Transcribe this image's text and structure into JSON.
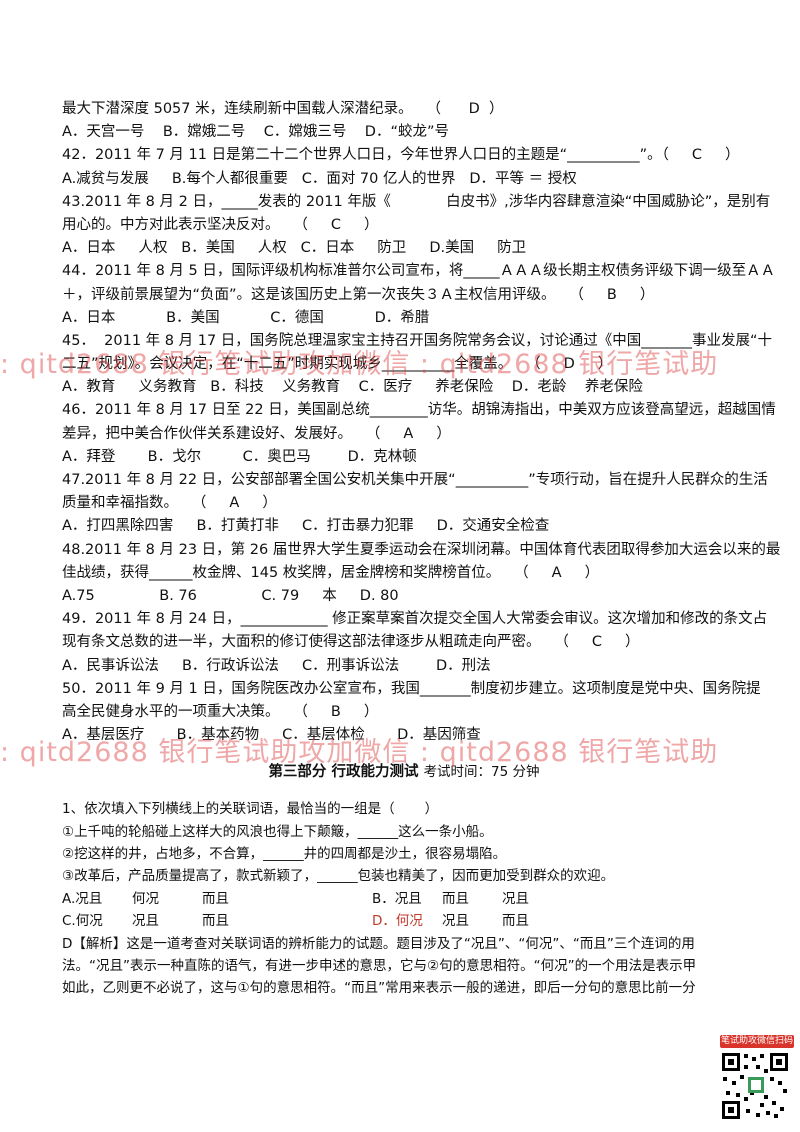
{
  "lines_top": [
    "最大下潜深度 5057 米，连续刷新中国载人深潜纪录。   （      D  ）",
    "A．天宫一号    B．嫦娥二号    C．嫦娥三号    D．“蛟龙”号",
    "42．2011 年 7 月 11 日是第二十二个世界人口日，今年世界人口日的主题是“__________”。（     C     ）",
    "A.减贫与发展     B.每个人都很重要   C．面对 70 亿人的世界   D．平等 ＝ 授权",
    "43.2011 年 8 月 2 日，_____发表的 2011 年版《            白皮书》,涉华内容肆意渲染“中国威胁论”，是别有",
    "用心的。中方对此表示坚决反对。   （     C     ）",
    "A．日本     人权   B．美国     人权   C．日本     防卫     D.美国     防卫",
    "44．2011 年 8 月 5 日，国际评级机构标准普尔公司宣布，将_____ＡＡＡ级长期主权债务评级下调一级至ＡＡ",
    "＋，评级前景展望为“负面”。这是该国历史上第一次丧失３Ａ主权信用评级。   （     B     ）",
    "A．日本           B．美国           C．德国           D．希腊",
    "45．  2011 年 8 月 17 日，国务院总理温家宝主持召开国务院常务会议，讨论通过《中国_______事业发展“十",
    "二五”规划》。会议决定，在“十二五”时期实现城乡__________全覆盖。   （     D     ）",
    "A．教育     义务教育   B．科技    义务教育    C．医疗     养老保险    D．老龄    养老保险",
    "46．2011 年 8 月 17 日至 22 日，美国副总统________访华。胡锦涛指出，中美双方应该登高望远，超越国情",
    "差异，把中美合作伙伴关系建设好、发展好。   （     A     ）",
    "A．拜登       B．戈尔         C．奥巴马        D．克林顿",
    "47.2011 年 8 月 22 日，公安部部署全国公安机关集中开展“__________”专项行动，旨在提升人民群众的生活",
    "质量和幸福指数。   （     A     ）",
    "A．打四黑除四害     B．打黄打非     C．打击暴力犯罪     D．交通安全检查",
    "48.2011 年 8 月 23 日，第 26 届世界大学生夏季运动会在深圳闭幕。中国体育代表团取得参加大运会以来的最",
    "佳战绩，获得______枚金牌、145 枚奖牌，居金牌榜和奖牌榜首位。   （     A     ）",
    "A.75              B. 76              C. 79     本     D. 80",
    "49．2011 年 8 月 24 日，____________ 修正案草案首次提交全国人大常委会审议。这次增加和修改的条文占",
    "现有条文总数的进一半，大面积的修订使得这部法律逐步从粗疏走向严密。   （     C     ）",
    "A．民事诉讼法     B．行政诉讼法     C．刑事诉讼法        D．刑法",
    "50．2011 年 9 月 1 日，国务院医改办公室宣布，我国_______制度初步建立。这项制度是党中央、国务院提",
    "高全民健身水平的一项重大决策。   （     B     ）",
    "A．基层医疗       B．基本药物     C．基层体检       D．基因筛查"
  ],
  "section3": {
    "title": "第三部分   行政能力测试",
    "subtitle": "考试时间：75 分钟"
  },
  "part3_lines": [
    "1、依次填入下列横线上的关联词语，最恰当的一组是（       ）",
    "①上千吨的轮船碰上这样大的风浪也得上下颠簸，______这么一条小船。",
    "②挖这样的井，占地多，不合算，______井的四周都是沙土，很容易塌陷。",
    "③改革后，产品质量提高了，款式新颖了，______包装也精美了，因而更加受到群众的欢迎。"
  ],
  "choices": {
    "A_label": "A.况且",
    "A_1": "何况",
    "A_2": "而且",
    "B_label": "B．况且",
    "B_1": "而且",
    "B_2": "况且",
    "C_label": "C.何况",
    "C_1": "况且",
    "C_2": "而且",
    "D_label": "D．何况",
    "D_1": "况且",
    "D_2": "而且"
  },
  "analysis_lines": [
    "D【解析】这是一道考查对关联词语的辨析能力的试题。题目涉及了“况且”、“何况”、“而且”三个连词的用",
    "法。“况且”表示一种直陈的语气，有进一步申述的意思，它与②句的意思相符。“何况”的一个用法是表示甲",
    "如此，乙则更不必说了，这与①句的意思相符。“而且”常用来表示一般的递进，即后一分句的意思比前一分"
  ],
  "watermark_1": ": qitd2688      银行笔试助攻加微信 : qitd2688      银行笔试助",
  "watermark_2": ": qitd2688      银行笔试助攻加微信 : qitd2688      银行笔试助",
  "qr_label": "笔试助攻微信扫码"
}
